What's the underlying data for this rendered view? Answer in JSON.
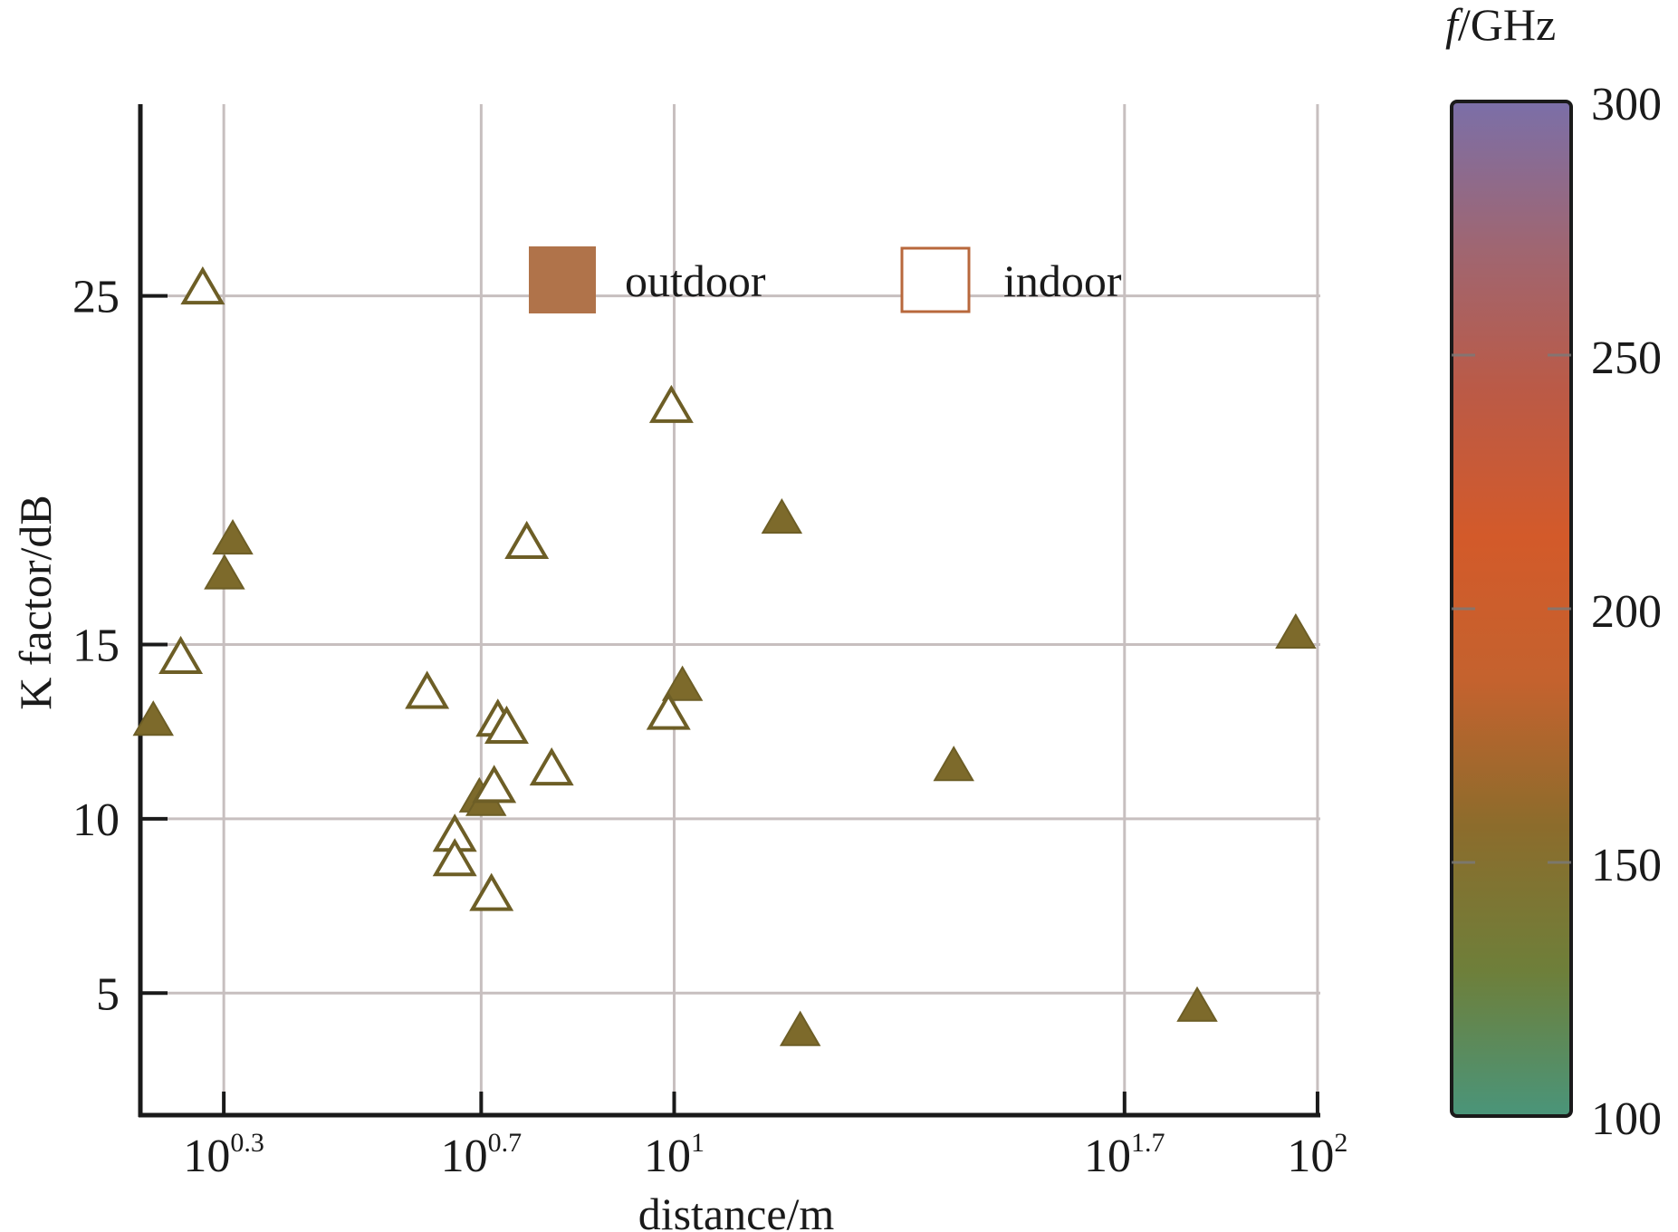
{
  "chart_data": {
    "type": "scatter",
    "xscale": "log",
    "xlim": [
      1.48,
      101
    ],
    "ylim": [
      1.5,
      30.5
    ],
    "x_ticks": [
      {
        "value": 1.995,
        "base": "10",
        "exp": "0.3"
      },
      {
        "value": 5.012,
        "base": "10",
        "exp": "0.7"
      },
      {
        "value": 10,
        "base": "10",
        "exp": "1"
      },
      {
        "value": 50.12,
        "base": "10",
        "exp": "1.7"
      },
      {
        "value": 100,
        "base": "10",
        "exp": "2"
      }
    ],
    "y_ticks": [
      5,
      10,
      15,
      25
    ],
    "xlabel": "distance/m",
    "ylabel": "K factor/dB",
    "grid": true,
    "series": [
      {
        "name": "outdoor",
        "marker": "filled-triangle",
        "points": [
          {
            "x": 1.55,
            "y": 12.8
          },
          {
            "x": 2.0,
            "y": 17.0
          },
          {
            "x": 2.06,
            "y": 18.0
          },
          {
            "x": 4.98,
            "y": 10.6
          },
          {
            "x": 5.1,
            "y": 10.5
          },
          {
            "x": 10.3,
            "y": 13.8
          },
          {
            "x": 14.7,
            "y": 18.6
          },
          {
            "x": 15.7,
            "y": 3.9
          },
          {
            "x": 27.2,
            "y": 11.5
          },
          {
            "x": 65.0,
            "y": 4.6
          },
          {
            "x": 92.5,
            "y": 15.3
          }
        ]
      },
      {
        "name": "indoor",
        "marker": "open-triangle",
        "points": [
          {
            "x": 1.85,
            "y": 25.2
          },
          {
            "x": 1.71,
            "y": 14.6
          },
          {
            "x": 4.13,
            "y": 13.6
          },
          {
            "x": 4.56,
            "y": 9.5
          },
          {
            "x": 4.56,
            "y": 8.8
          },
          {
            "x": 5.2,
            "y": 7.8
          },
          {
            "x": 5.25,
            "y": 10.9
          },
          {
            "x": 5.32,
            "y": 12.8
          },
          {
            "x": 5.49,
            "y": 12.6
          },
          {
            "x": 5.9,
            "y": 17.9
          },
          {
            "x": 6.45,
            "y": 11.4
          },
          {
            "x": 9.8,
            "y": 13.0
          },
          {
            "x": 9.9,
            "y": 21.8
          }
        ]
      }
    ],
    "legend": {
      "placement": "top-center",
      "entries": [
        {
          "label": "outdoor",
          "style": "filled-square"
        },
        {
          "label": "indoor",
          "style": "open-square"
        }
      ]
    },
    "colorbar": {
      "label_italic": "f",
      "label_rest": "/GHz",
      "range": [
        100,
        300
      ],
      "ticks": [
        100,
        150,
        200,
        250,
        300
      ],
      "colors": [
        "#4a957a",
        "#6e7f3a",
        "#8c6c2c",
        "#c4622e",
        "#d35a2a",
        "#bb5a46",
        "#9f6672",
        "#7b6fa8"
      ]
    },
    "colors": {
      "marker_fill": "#7d6a2b",
      "marker_stroke": "#6d5e26",
      "legend_outdoor": "#b0734a",
      "legend_indoor": "#b8683c",
      "grid": "#c7bfbf"
    }
  }
}
